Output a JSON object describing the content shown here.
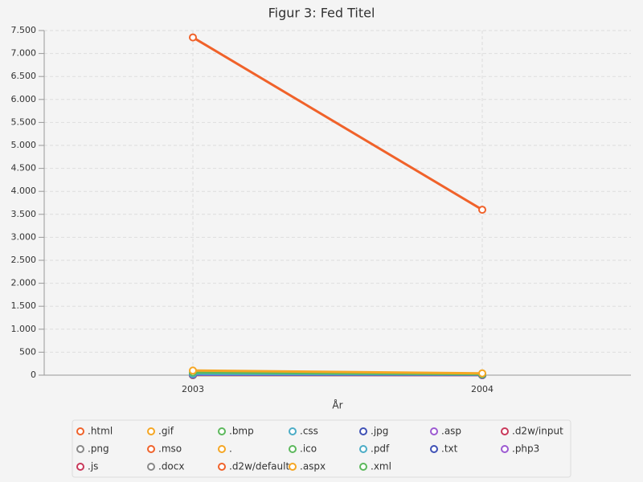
{
  "chart_data": {
    "type": "line",
    "title": "Figur 3: Fed Titel",
    "x_label": "År",
    "categories": [
      "2003",
      "2004"
    ],
    "ylim": [
      0,
      7500
    ],
    "yticks": [
      0,
      500,
      {
        "value": 1000,
        "label": "1.000"
      },
      {
        "value": 1500,
        "label": "1.500"
      },
      {
        "value": 2000,
        "label": "2.000"
      },
      {
        "value": 2500,
        "label": "2.500"
      },
      {
        "value": 3000,
        "label": "3.000"
      },
      {
        "value": 3500,
        "label": "3.500"
      },
      {
        "value": 4000,
        "label": "4.000"
      },
      {
        "value": 4500,
        "label": "4.500"
      },
      {
        "value": 5000,
        "label": "5.000"
      },
      {
        "value": 5500,
        "label": "5.500"
      },
      {
        "value": 6000,
        "label": "6.000"
      },
      {
        "value": 6500,
        "label": "6.500"
      },
      {
        "value": 7000,
        "label": "7.000"
      },
      {
        "value": 7500,
        "label": "7.500"
      }
    ],
    "grid": true,
    "series": [
      {
        "name": ".html",
        "color": "#f0622a",
        "values": [
          7350,
          3600
        ]
      },
      {
        "name": ".gif",
        "color": "#f5a623",
        "values": [
          100,
          40
        ]
      },
      {
        "name": ".bmp",
        "color": "#5cb85c",
        "values": [
          60,
          20
        ]
      },
      {
        "name": ".css",
        "color": "#4bacc6",
        "values": [
          30,
          15
        ]
      },
      {
        "name": ".jpg",
        "color": "#3f51b5",
        "values": [
          20,
          10
        ]
      },
      {
        "name": ".asp",
        "color": "#9c59d1",
        "values": [
          10,
          5
        ]
      },
      {
        "name": ".d2w/input",
        "color": "#c9385a",
        "values": [
          8,
          4
        ]
      },
      {
        "name": ".png",
        "color": "#888888",
        "values": [
          6,
          3
        ]
      },
      {
        "name": ".mso",
        "color": "#f0622a",
        "values": [
          5,
          2
        ]
      },
      {
        "name": ".",
        "color": "#f5a623",
        "values": [
          4,
          2
        ]
      },
      {
        "name": ".ico",
        "color": "#5cb85c",
        "values": [
          3,
          1
        ]
      },
      {
        "name": ".pdf",
        "color": "#4bacc6",
        "values": [
          3,
          1
        ]
      },
      {
        "name": ".txt",
        "color": "#3f51b5",
        "values": [
          2,
          1
        ]
      },
      {
        "name": ".php3",
        "color": "#9c59d1",
        "values": [
          2,
          1
        ]
      },
      {
        "name": ".js",
        "color": "#c9385a",
        "values": [
          1,
          1
        ]
      },
      {
        "name": ".docx",
        "color": "#888888",
        "values": [
          1,
          0
        ]
      },
      {
        "name": ".d2w/default",
        "color": "#f0622a",
        "values": [
          1,
          0
        ]
      },
      {
        "name": ".aspx",
        "color": "#f5a623",
        "values": [
          1,
          0
        ]
      },
      {
        "name": ".xml",
        "color": "#5cb85c",
        "values": [
          0,
          0
        ]
      }
    ]
  }
}
